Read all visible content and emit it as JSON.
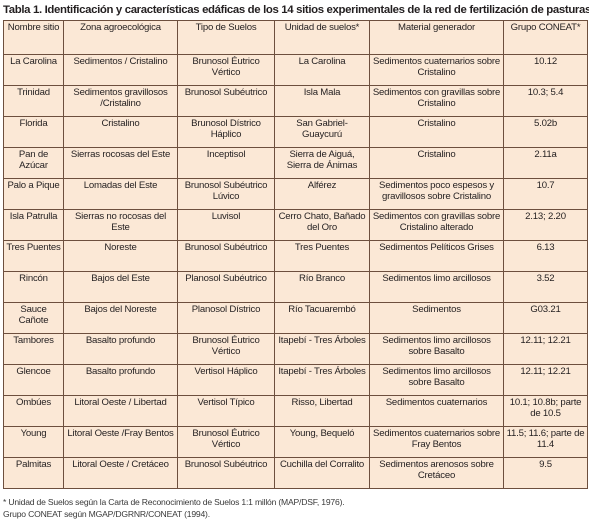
{
  "caption": "Tabla 1. Identificación y características edáficas de los 14 sitios experimentales de la red de fertilización de pasturas.",
  "columns": [
    "Nombre sitio",
    "Zona agroecológica",
    "Tipo de Suelos",
    "Unidad de suelos*",
    "Material generador",
    "Grupo CONEAT*"
  ],
  "rows": [
    [
      "La Carolina",
      "Sedimentos / Cristalino",
      "Brunosol Éutrico Vértico",
      "La Carolina",
      "Sedimentos cuaternarios sobre Cristalino",
      "10.12"
    ],
    [
      "Trinidad",
      "Sedimentos gravillosos /Cristalino",
      "Brunosol Subéutrico",
      "Isla Mala",
      "Sedimentos con gravillas sobre Cristalino",
      "10.3; 5.4"
    ],
    [
      "Florida",
      "Cristalino",
      "Brunosol Dístrico Háplico",
      "San Gabriel-Guaycurú",
      "Cristalino",
      "5.02b"
    ],
    [
      "Pan de Azúcar",
      "Sierras rocosas del Este",
      "Inceptisol",
      "Sierra de Aiguá, Sierra de Ánimas",
      "Cristalino",
      "2.11a"
    ],
    [
      "Palo a Pique",
      "Lomadas del Este",
      "Brunosol Subéutrico Lúvico",
      "Alférez",
      "Sedimentos poco espesos y gravillosos sobre Cristalino",
      "10.7"
    ],
    [
      "Isla Patrulla",
      "Sierras no rocosas del Este",
      "Luvisol",
      "Cerro Chato, Bañado del Oro",
      "Sedimentos con gravillas sobre Cristalino alterado",
      "2.13; 2.20"
    ],
    [
      "Tres Puentes",
      "Noreste",
      "Brunosol Subéutrico",
      "Tres Puentes",
      "Sedimentos Pelíticos Grises",
      "6.13"
    ],
    [
      "Rincón",
      "Bajos del Este",
      "Planosol Subéutrico",
      "Río Branco",
      "Sedimentos limo arcillosos",
      "3.52"
    ],
    [
      "Sauce Cañote",
      "Bajos del Noreste",
      "Planosol Dístrico",
      "Río Tacuarembó",
      "Sedimentos",
      "G03.21"
    ],
    [
      "Tambores",
      "Basalto profundo",
      "Brunosol Éutrico Vértico",
      "Itapebí - Tres Árboles",
      "Sedimentos limo arcillosos sobre Basalto",
      "12.11; 12.21"
    ],
    [
      "Glencoe",
      "Basalto profundo",
      "Vertisol Háplico",
      "Itapebí - Tres Árboles",
      "Sedimentos limo arcillosos sobre Basalto",
      "12.11; 12.21"
    ],
    [
      "Ombúes",
      "Litoral Oeste / Libertad",
      "Vertisol Típico",
      "Risso, Libertad",
      "Sedimentos cuaternarios",
      "10.1; 10.8b; parte de 10.5"
    ],
    [
      "Young",
      "Litoral Oeste /Fray Bentos",
      "Brunosol Éutrico Vértico",
      "Young, Bequeló",
      "Sedimentos cuaternarios sobre Fray Bentos",
      "11.5; 11.6; parte de 11.4"
    ],
    [
      "Palmitas",
      "Litoral Oeste / Cretáceo",
      "Brunosol Subéutrico",
      "Cuchilla del Corralito",
      "Sedimentos arenosos sobre Cretáceo",
      "9.5"
    ]
  ],
  "footnotes": [
    "* Unidad de Suelos según la Carta de Reconocimiento de Suelos 1:1 millón (MAP/DSF, 1976).",
    "Grupo CONEAT según MGAP/DGRNR/CONEAT (1994)."
  ]
}
